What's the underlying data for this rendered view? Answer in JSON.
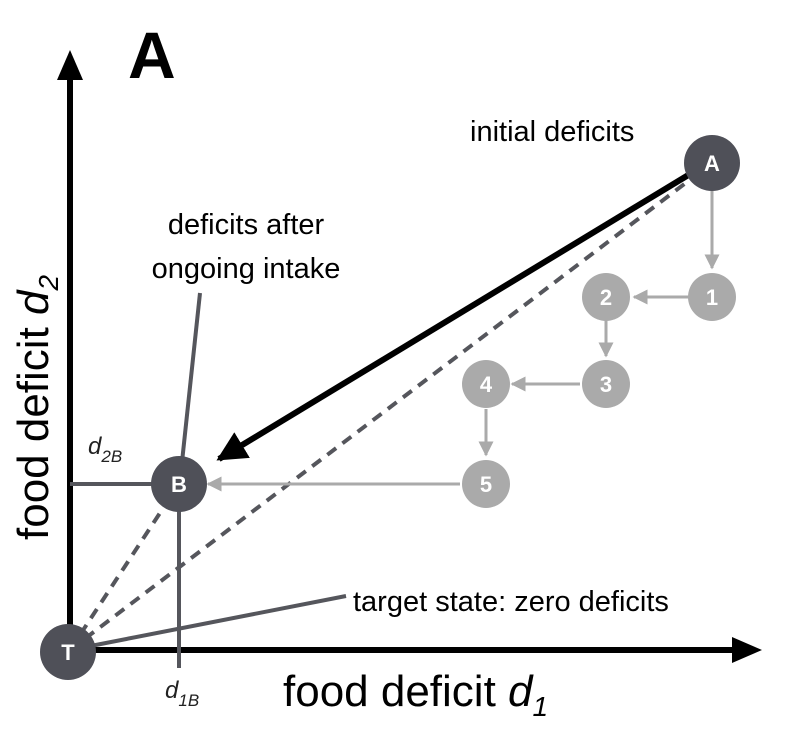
{
  "panel_label": "A",
  "axes": {
    "x_label_text": "food deficit ",
    "x_label_var": "d",
    "x_label_sub": "1",
    "y_label_text": "food deficit ",
    "y_label_var": "d",
    "y_label_sub": "2"
  },
  "annotations": {
    "initial": "initial deficits",
    "after_line1": "deficits after",
    "after_line2": "ongoing intake",
    "target": "target state: zero deficits"
  },
  "ticks": {
    "d1B_var": "d",
    "d1B_sub": "1B",
    "d2B_var": "d",
    "d2B_sub": "2B"
  },
  "nodes": {
    "A": "A",
    "B": "B",
    "T": "T"
  },
  "steps": [
    "1",
    "2",
    "3",
    "4",
    "5"
  ],
  "colors": {
    "node_dark": "#4f5058",
    "step_gray": "#aaaaaa",
    "axis": "#000000",
    "guide": "#55565c",
    "dashed": "#55565c"
  }
}
